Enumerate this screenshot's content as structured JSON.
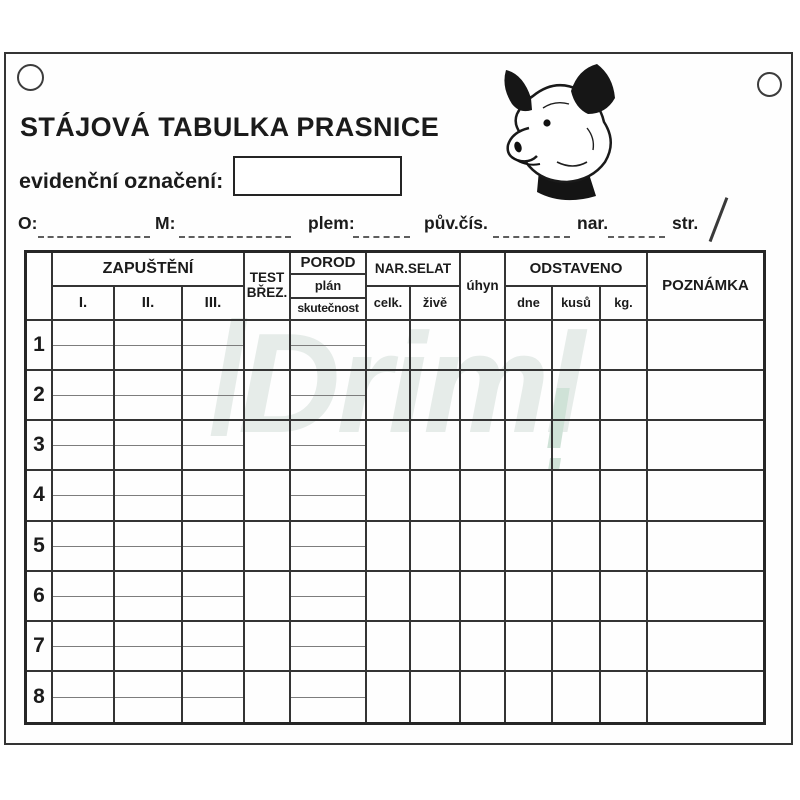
{
  "card": {
    "title": "STÁJOVÁ TABULKA PRASNICE",
    "evidence_label": "evidenční označení:",
    "evidence_value": "",
    "fields": {
      "o": "O:",
      "m": "M:",
      "plem": "plem:",
      "puv_cis": "pův.čís.",
      "nar": "nar.",
      "str": "str."
    },
    "watermark_text": "Driml"
  },
  "table": {
    "header": {
      "zapusteni": {
        "label": "ZAPUŠTĚNÍ",
        "cols": [
          "I.",
          "II.",
          "III."
        ]
      },
      "test_brez": {
        "line1": "TEST",
        "line2": "BŘEZ."
      },
      "porod": {
        "label": "POROD",
        "rows": [
          "plán",
          "skutečnost"
        ]
      },
      "nar_selat": {
        "label": "NAR.SELAT",
        "cols": [
          "celk.",
          "živě"
        ]
      },
      "uhyn": "úhyn",
      "odstaveno": {
        "label": "ODSTAVENO",
        "cols": [
          "dne",
          "kusů",
          "kg."
        ]
      },
      "poznamka": "POZNÁMKA"
    },
    "row_numbers": [
      "1",
      "2",
      "3",
      "4",
      "5",
      "6",
      "7",
      "8"
    ]
  },
  "colors": {
    "ink": "#1b1b1b",
    "grid_line": "#343434",
    "sub_line": "#7d7d7d",
    "watermark": "#e6ece9",
    "watermark_green": "#cfe2d7"
  }
}
